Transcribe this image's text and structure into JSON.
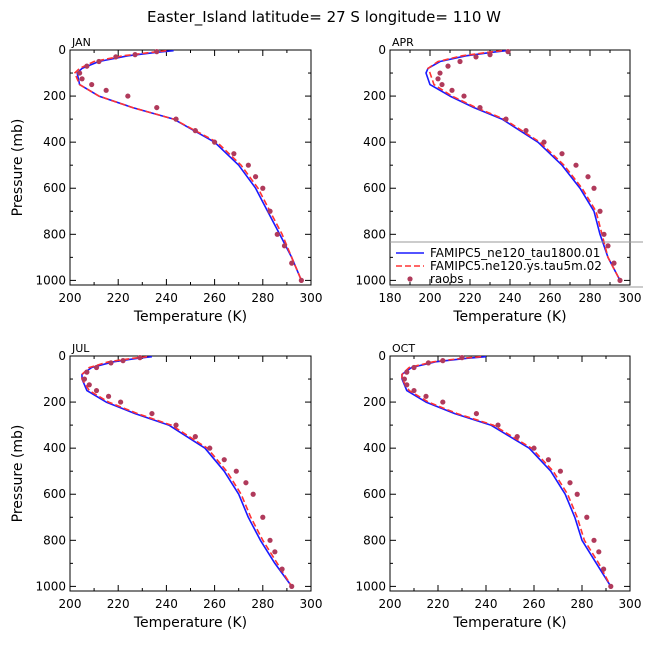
{
  "title": "Easter_Island  latitude= 27 S longitude= 110 W",
  "legend": {
    "entries": [
      {
        "label": "FAMIPC5_ne120_tau1800.01",
        "color": "#1a1aff",
        "style": "solid"
      },
      {
        "label": "FAMIPC5.ne120.ys.tau5m.02",
        "color": "#ff3333",
        "style": "dashed"
      },
      {
        "label": "raobs",
        "color": "#b03a5b",
        "style": "dots"
      }
    ]
  },
  "chart_data": [
    {
      "type": "line",
      "panel": "JAN",
      "xlabel": "Temperature (K)",
      "ylabel": "Pressure (mb)",
      "xlim": [
        200,
        300
      ],
      "ylim": [
        1020,
        0
      ],
      "xticks": [
        "200",
        "220",
        "240",
        "260",
        "280",
        "300"
      ],
      "yticks": [
        "0",
        "200",
        "400",
        "600",
        "800",
        "1000"
      ],
      "series": [
        {
          "name": "FAMIPC5_ne120_tau1800.01",
          "x": [
            243,
            236,
            224,
            212,
            205,
            203,
            204,
            212,
            226,
            243,
            260,
            270,
            277,
            282,
            287,
            292,
            296
          ],
          "y": [
            3,
            10,
            25,
            50,
            80,
            100,
            150,
            200,
            250,
            300,
            400,
            500,
            600,
            700,
            800,
            900,
            1000
          ]
        },
        {
          "name": "FAMIPC5.ne120.ys.tau5m.02",
          "x": [
            240,
            234,
            222,
            210,
            204,
            202,
            204,
            212,
            226,
            243,
            261,
            271,
            278,
            283,
            288,
            292,
            296
          ],
          "y": [
            3,
            10,
            25,
            50,
            80,
            100,
            150,
            200,
            250,
            300,
            400,
            500,
            600,
            700,
            800,
            900,
            1000
          ]
        },
        {
          "name": "raobs",
          "x": [
            236,
            227,
            219,
            212,
            207,
            204,
            205,
            209,
            215,
            224,
            236,
            244,
            252,
            260,
            268,
            274,
            277,
            280,
            283,
            286,
            289,
            292,
            296
          ],
          "y": [
            7,
            20,
            30,
            50,
            70,
            100,
            125,
            150,
            175,
            200,
            250,
            300,
            350,
            400,
            450,
            500,
            550,
            600,
            700,
            800,
            850,
            925,
            1000
          ]
        }
      ]
    },
    {
      "type": "line",
      "panel": "APR",
      "xlabel": "Temperature (K)",
      "ylabel": "",
      "xlim": [
        180,
        300
      ],
      "ylim": [
        1020,
        0
      ],
      "xticks": [
        "180",
        "200",
        "220",
        "240",
        "260",
        "280",
        "300"
      ],
      "yticks": [
        "0",
        "200",
        "400",
        "600",
        "800",
        "1000"
      ],
      "series": [
        {
          "name": "FAMIPC5_ne120_tau1800.01",
          "x": [
            238,
            231,
            218,
            205,
            199,
            198,
            200,
            210,
            222,
            236,
            254,
            266,
            275,
            282,
            285,
            289,
            295
          ],
          "y": [
            3,
            10,
            25,
            50,
            80,
            100,
            150,
            200,
            250,
            300,
            400,
            500,
            600,
            700,
            800,
            900,
            1000
          ]
        },
        {
          "name": "FAMIPC5.ne120.ys.tau5m.02",
          "x": [
            236,
            229,
            216,
            204,
            199,
            200,
            202,
            211,
            223,
            237,
            255,
            267,
            276,
            283,
            286,
            289,
            295
          ],
          "y": [
            3,
            10,
            25,
            50,
            80,
            100,
            150,
            200,
            250,
            300,
            400,
            500,
            600,
            700,
            800,
            900,
            1000
          ]
        },
        {
          "name": "raobs",
          "x": [
            239,
            230,
            223,
            215,
            209,
            205,
            204,
            206,
            211,
            217,
            225,
            238,
            248,
            257,
            266,
            273,
            279,
            282,
            285,
            287,
            289,
            292,
            295
          ],
          "y": [
            7,
            20,
            30,
            50,
            70,
            100,
            125,
            150,
            175,
            200,
            250,
            300,
            350,
            400,
            450,
            500,
            550,
            600,
            700,
            800,
            850,
            925,
            1000
          ]
        }
      ]
    },
    {
      "type": "line",
      "panel": "JUL",
      "xlabel": "Temperature (K)",
      "ylabel": "Pressure (mb)",
      "xlim": [
        200,
        300
      ],
      "ylim": [
        1020,
        0
      ],
      "xticks": [
        "200",
        "220",
        "240",
        "260",
        "280",
        "300"
      ],
      "yticks": [
        "0",
        "200",
        "400",
        "600",
        "800",
        "1000"
      ],
      "series": [
        {
          "name": "FAMIPC5_ne120_tau1800.01",
          "x": [
            234,
            228,
            218,
            209,
            205,
            205,
            207,
            215,
            227,
            241,
            256,
            264,
            270,
            274,
            279,
            285,
            292
          ],
          "y": [
            3,
            10,
            25,
            50,
            80,
            100,
            150,
            200,
            250,
            300,
            400,
            500,
            600,
            700,
            800,
            900,
            1000
          ]
        },
        {
          "name": "FAMIPC5.ne120.ys.tau5m.02",
          "x": [
            232,
            226,
            216,
            208,
            205,
            205,
            208,
            216,
            228,
            242,
            257,
            265,
            271,
            275,
            280,
            286,
            292
          ],
          "y": [
            3,
            10,
            25,
            50,
            80,
            100,
            150,
            200,
            250,
            300,
            400,
            500,
            600,
            700,
            800,
            900,
            1000
          ]
        },
        {
          "name": "raobs",
          "x": [
            229,
            222,
            217,
            211,
            207,
            206,
            208,
            211,
            216,
            221,
            234,
            244,
            252,
            258,
            264,
            269,
            273,
            276,
            280,
            283,
            285,
            288,
            292
          ],
          "y": [
            7,
            20,
            30,
            50,
            70,
            100,
            125,
            150,
            175,
            200,
            250,
            300,
            350,
            400,
            450,
            500,
            550,
            600,
            700,
            800,
            850,
            925,
            1000
          ]
        }
      ]
    },
    {
      "type": "line",
      "panel": "OCT",
      "xlabel": "Temperature (K)",
      "ylabel": "",
      "xlim": [
        200,
        300
      ],
      "ylim": [
        1020,
        0
      ],
      "xticks": [
        "200",
        "220",
        "240",
        "260",
        "280",
        "300"
      ],
      "yticks": [
        "0",
        "200",
        "400",
        "600",
        "800",
        "1000"
      ],
      "series": [
        {
          "name": "FAMIPC5_ne120_tau1800.01",
          "x": [
            240,
            232,
            219,
            209,
            205,
            205,
            207,
            215,
            227,
            242,
            258,
            267,
            273,
            277,
            280,
            286,
            292
          ],
          "y": [
            3,
            10,
            25,
            50,
            80,
            100,
            150,
            200,
            250,
            300,
            400,
            500,
            600,
            700,
            800,
            900,
            1000
          ]
        },
        {
          "name": "FAMIPC5.ne120.ys.tau5m.02",
          "x": [
            238,
            230,
            218,
            208,
            205,
            205,
            208,
            216,
            228,
            243,
            259,
            268,
            274,
            278,
            281,
            287,
            292
          ],
          "y": [
            3,
            10,
            25,
            50,
            80,
            100,
            150,
            200,
            250,
            300,
            400,
            500,
            600,
            700,
            800,
            900,
            1000
          ]
        },
        {
          "name": "raobs",
          "x": [
            230,
            222,
            216,
            210,
            207,
            206,
            207,
            210,
            215,
            222,
            236,
            245,
            253,
            260,
            266,
            271,
            275,
            278,
            282,
            285,
            287,
            289,
            292
          ],
          "y": [
            7,
            20,
            30,
            50,
            70,
            100,
            125,
            150,
            175,
            200,
            250,
            300,
            350,
            400,
            450,
            500,
            550,
            600,
            700,
            800,
            850,
            925,
            1000
          ]
        }
      ]
    }
  ]
}
